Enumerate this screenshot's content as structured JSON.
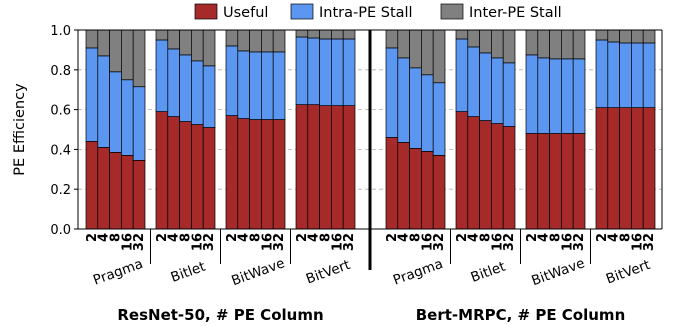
{
  "chart_data": {
    "type": "bar",
    "stacked": true,
    "ylabel": "PE Efficiency",
    "ylim": [
      0,
      1.0
    ],
    "yticks": [
      "0.0",
      "0.2",
      "0.4",
      "0.6",
      "0.8",
      "1.0"
    ],
    "grid": "horizontal dashed",
    "legend": {
      "placement": "top",
      "entries": [
        {
          "name": "Useful",
          "color": "#a62a2a"
        },
        {
          "name": "Intra-PE Stall",
          "color": "#5b97f0"
        },
        {
          "name": "Inter-PE Stall",
          "color": "#808080"
        }
      ]
    },
    "panels": [
      {
        "xlabel": "ResNet-50, # PE Column",
        "groups": [
          {
            "name": "Pragma",
            "x": [
              "2",
              "4",
              "8",
              "16",
              "32"
            ],
            "useful": [
              0.44,
              0.41,
              0.385,
              0.37,
              0.345
            ],
            "intra": [
              0.47,
              0.46,
              0.405,
              0.38,
              0.37
            ],
            "inter": [
              0.09,
              0.13,
              0.21,
              0.25,
              0.285
            ]
          },
          {
            "name": "Bitlet",
            "x": [
              "2",
              "4",
              "8",
              "16",
              "32"
            ],
            "useful": [
              0.59,
              0.565,
              0.54,
              0.525,
              0.51
            ],
            "intra": [
              0.36,
              0.34,
              0.335,
              0.32,
              0.31
            ],
            "inter": [
              0.05,
              0.095,
              0.125,
              0.155,
              0.18
            ]
          },
          {
            "name": "BitWave",
            "x": [
              "2",
              "4",
              "8",
              "16",
              "32"
            ],
            "useful": [
              0.57,
              0.555,
              0.55,
              0.55,
              0.55
            ],
            "intra": [
              0.35,
              0.34,
              0.34,
              0.34,
              0.34
            ],
            "inter": [
              0.08,
              0.105,
              0.11,
              0.11,
              0.11
            ]
          },
          {
            "name": "BitVert",
            "x": [
              "2",
              "4",
              "8",
              "16",
              "32"
            ],
            "useful": [
              0.625,
              0.625,
              0.62,
              0.62,
              0.62
            ],
            "intra": [
              0.34,
              0.335,
              0.335,
              0.335,
              0.335
            ],
            "inter": [
              0.035,
              0.04,
              0.045,
              0.045,
              0.045
            ]
          }
        ]
      },
      {
        "xlabel": "Bert-MRPC, # PE Column",
        "groups": [
          {
            "name": "Pragma",
            "x": [
              "2",
              "4",
              "8",
              "16",
              "32"
            ],
            "useful": [
              0.46,
              0.435,
              0.405,
              0.39,
              0.37
            ],
            "intra": [
              0.45,
              0.425,
              0.405,
              0.385,
              0.365
            ],
            "inter": [
              0.09,
              0.14,
              0.19,
              0.225,
              0.265
            ]
          },
          {
            "name": "Bitlet",
            "x": [
              "2",
              "4",
              "8",
              "16",
              "32"
            ],
            "useful": [
              0.59,
              0.565,
              0.545,
              0.53,
              0.515
            ],
            "intra": [
              0.365,
              0.35,
              0.34,
              0.33,
              0.32
            ],
            "inter": [
              0.045,
              0.085,
              0.115,
              0.14,
              0.165
            ]
          },
          {
            "name": "BitWave",
            "x": [
              "2",
              "4",
              "8",
              "16",
              "32"
            ],
            "useful": [
              0.48,
              0.48,
              0.48,
              0.48,
              0.48
            ],
            "intra": [
              0.395,
              0.38,
              0.375,
              0.375,
              0.375
            ],
            "inter": [
              0.125,
              0.14,
              0.145,
              0.145,
              0.145
            ]
          },
          {
            "name": "BitVert",
            "x": [
              "2",
              "4",
              "8",
              "16",
              "32"
            ],
            "useful": [
              0.61,
              0.61,
              0.61,
              0.61,
              0.61
            ],
            "intra": [
              0.34,
              0.33,
              0.325,
              0.325,
              0.325
            ],
            "inter": [
              0.05,
              0.06,
              0.065,
              0.065,
              0.065
            ]
          }
        ]
      }
    ]
  }
}
